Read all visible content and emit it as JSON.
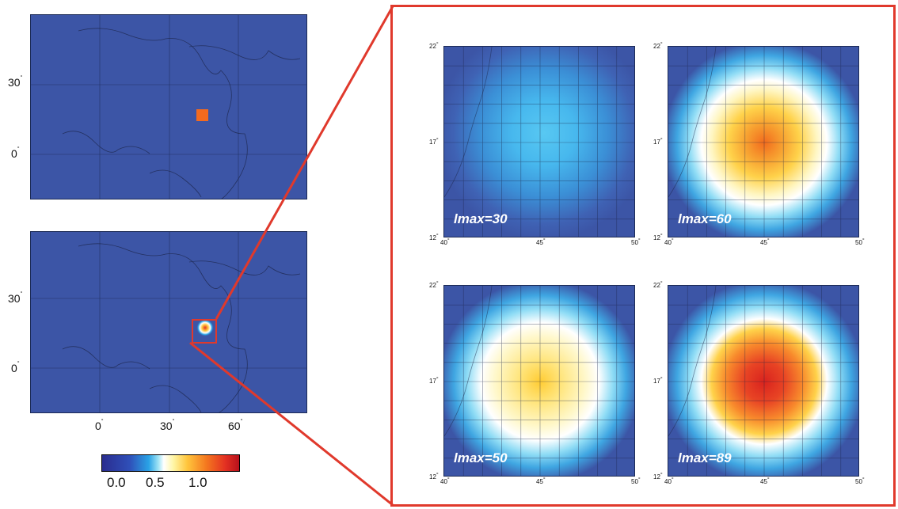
{
  "overview_top": {
    "lat_labels": [
      "30",
      "0"
    ],
    "marker_color": "#f36a1e"
  },
  "overview_bottom": {
    "lat_labels": [
      "30",
      "0"
    ],
    "lon_labels": [
      "0",
      "30",
      "60"
    ]
  },
  "colorbar": {
    "labels": [
      "0.0",
      "0.5",
      "1.0"
    ],
    "colors": [
      "#2a2d8f",
      "#2aa3e6",
      "#ffffff",
      "#ffc63d",
      "#e33022",
      "#b8111c"
    ]
  },
  "zoom_panels": [
    {
      "label": "lmax=30",
      "amplitude": 0.35
    },
    {
      "label": "lmax=60",
      "amplitude": 1.0
    },
    {
      "label": "lmax=50",
      "amplitude": 0.75
    },
    {
      "label": "lmax=89",
      "amplitude": 1.1
    }
  ],
  "zoom_axes": {
    "lat_top": "22",
    "lat_mid": "17",
    "lat_bottom": "12",
    "lon_left": "40",
    "lon_mid": "45",
    "lon_right": "50"
  },
  "highlight_color": "#e0392c",
  "ocean_color": "#3c55a6"
}
